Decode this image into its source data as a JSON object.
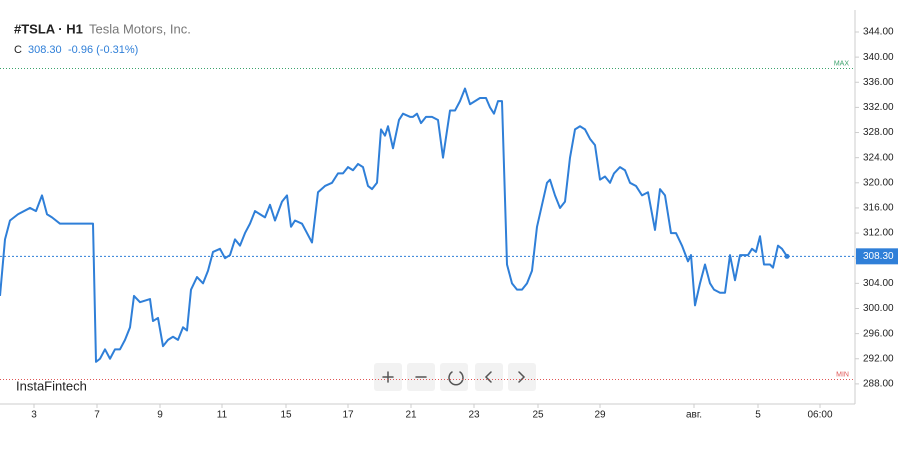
{
  "chart_data": {
    "type": "line",
    "title": "#TSLA · H1",
    "subtitle": "Tesla Motors, Inc.",
    "close_label": "C",
    "last": {
      "value": 308.3,
      "label": "308.30"
    },
    "change_label": "-0.96 (-0.31%)",
    "watermark": "InstaFintech",
    "color": "#2f7fd8",
    "max_line": {
      "value": 338.2,
      "label": "MAX",
      "color": "#3aa36b"
    },
    "min_line": {
      "value": 288.7,
      "label": "MIN",
      "color": "#e05555"
    },
    "price_line": {
      "value": 308.3,
      "label": "308.30"
    },
    "xlim": [
      0,
      855
    ],
    "ylim": [
      284.8,
      347.5
    ],
    "xticks": [
      {
        "value": 34,
        "label": "3"
      },
      {
        "value": 97,
        "label": "7"
      },
      {
        "value": 160,
        "label": "9"
      },
      {
        "value": 222,
        "label": "11"
      },
      {
        "value": 286,
        "label": "15"
      },
      {
        "value": 348,
        "label": "17"
      },
      {
        "value": 411,
        "label": "21"
      },
      {
        "value": 474,
        "label": "23"
      },
      {
        "value": 538,
        "label": "25"
      },
      {
        "value": 600,
        "label": "29"
      },
      {
        "value": 694,
        "label": "авг."
      },
      {
        "value": 758,
        "label": "5"
      },
      {
        "value": 820,
        "label": "06:00"
      }
    ],
    "yticks": [
      {
        "value": 288,
        "label": "288.00"
      },
      {
        "value": 292,
        "label": "292.00"
      },
      {
        "value": 296,
        "label": "296.00"
      },
      {
        "value": 300,
        "label": "300.00"
      },
      {
        "value": 304,
        "label": "304.00"
      },
      {
        "value": 308,
        "label": "308.00"
      },
      {
        "value": 312,
        "label": "312.00"
      },
      {
        "value": 316,
        "label": "316.00"
      },
      {
        "value": 320,
        "label": "320.00"
      },
      {
        "value": 324,
        "label": "324.00"
      },
      {
        "value": 328,
        "label": "328.00"
      },
      {
        "value": 332,
        "label": "332.00"
      },
      {
        "value": 336,
        "label": "336.00"
      },
      {
        "value": 340,
        "label": "340.00"
      },
      {
        "value": 344,
        "label": "344.00"
      }
    ],
    "x": [
      0,
      5,
      10,
      18,
      30,
      36,
      42,
      47,
      52,
      60,
      93,
      96,
      100,
      105,
      110,
      115,
      120,
      125,
      130,
      134,
      140,
      150,
      153,
      158,
      163,
      168,
      173,
      178,
      183,
      187,
      191,
      197,
      203,
      208,
      213,
      220,
      225,
      230,
      235,
      240,
      245,
      250,
      255,
      260,
      265,
      270,
      275,
      282,
      287,
      291,
      295,
      302,
      307,
      312,
      318,
      325,
      332,
      338,
      343,
      348,
      353,
      358,
      363,
      368,
      372,
      377,
      381,
      385,
      388,
      393,
      399,
      403,
      410,
      413,
      417,
      421,
      426,
      432,
      438,
      443,
      450,
      455,
      460,
      465,
      470,
      475,
      480,
      486,
      490,
      494,
      498,
      502,
      507,
      512,
      517,
      522,
      527,
      532,
      537,
      542,
      547,
      550,
      555,
      560,
      565,
      570,
      575,
      580,
      585,
      590,
      595,
      600,
      605,
      610,
      614,
      620,
      625,
      630,
      636,
      642,
      648,
      655,
      660,
      665,
      671,
      676,
      682,
      688,
      691,
      695,
      700,
      705,
      710,
      714,
      720,
      725,
      730,
      735,
      740,
      748,
      752,
      756,
      760,
      764,
      770,
      773,
      778,
      782,
      787
    ],
    "values": [
      302,
      311,
      314,
      315,
      316,
      315.5,
      318,
      315,
      314.5,
      313.5,
      313.5,
      291.5,
      292,
      293.5,
      292,
      293.5,
      293.5,
      295,
      297,
      302,
      301,
      301.5,
      298,
      298.5,
      294,
      295,
      295.5,
      295,
      297,
      296.5,
      303,
      305,
      304,
      306,
      309,
      309.5,
      308,
      308.5,
      311,
      310,
      312,
      313.5,
      315.5,
      315,
      314.5,
      316.5,
      314,
      317,
      318,
      313,
      314,
      313.5,
      312,
      310.5,
      318.5,
      319.5,
      320,
      321.5,
      321.5,
      322.5,
      322,
      323,
      322.5,
      319.5,
      319,
      320,
      328.5,
      327.5,
      329,
      325.5,
      330,
      331,
      330.5,
      330.5,
      331,
      329.5,
      330.5,
      330.5,
      330,
      324,
      331.5,
      331.5,
      333,
      335,
      332.5,
      333,
      333.5,
      333.5,
      332,
      331,
      333,
      333,
      307,
      304,
      303,
      303,
      304,
      306,
      313,
      316.5,
      320,
      320.5,
      318,
      316,
      317,
      324,
      328.5,
      329,
      328.5,
      327,
      326,
      320.5,
      321,
      320,
      321.5,
      322.5,
      322,
      320,
      319.5,
      318,
      318.5,
      312.5,
      319,
      318,
      312,
      312,
      310,
      307.5,
      308.5,
      300.5,
      304,
      307,
      304,
      303,
      302.5,
      302.5,
      308.5,
      304.5,
      308.5,
      308.5,
      309.5,
      309,
      311.5,
      307,
      307,
      306.5,
      310,
      309.5,
      308.3
    ]
  }
}
